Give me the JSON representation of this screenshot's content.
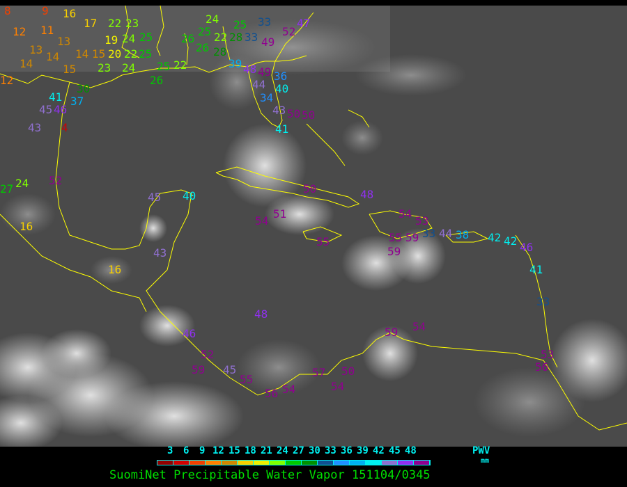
{
  "title": "SuomiNet Precipitable Water Vapor 151104/0345",
  "legend": {
    "ticks": [
      "3",
      "6",
      "9",
      "12",
      "15",
      "18",
      "21",
      "24",
      "27",
      "30",
      "33",
      "36",
      "39",
      "42",
      "45",
      "48"
    ],
    "unit_label": "PWV",
    "unit": "mm",
    "colors": [
      "#900000",
      "#d00000",
      "#f04000",
      "#ff8000",
      "#d08800",
      "#f8d000",
      "#f0f000",
      "#80ff00",
      "#00c800",
      "#009000",
      "#105090",
      "#2090ff",
      "#00b0f0",
      "#00f0f0",
      "#9070d0",
      "#9030f0",
      "#900090"
    ]
  },
  "coastline_color": "#ffff00",
  "stations": [
    8,
    9,
    16,
    17,
    12,
    11,
    13,
    14,
    14,
    15,
    13,
    14,
    15,
    12,
    22,
    23,
    19,
    24,
    25,
    20,
    22,
    25,
    23,
    24,
    25,
    26,
    26,
    25,
    24,
    22,
    22,
    26,
    28,
    28,
    25,
    33,
    33,
    52,
    47,
    49,
    39,
    48,
    49,
    44,
    36,
    34,
    40,
    43,
    50,
    50,
    41,
    30,
    41,
    37,
    46,
    45,
    43,
    4,
    52,
    27,
    24,
    16,
    45,
    40,
    43,
    16,
    54,
    51,
    50,
    48,
    55,
    55,
    54,
    53,
    59,
    59,
    33,
    44,
    38,
    42,
    46,
    41,
    33,
    42,
    48,
    46,
    52,
    59,
    45,
    55,
    56,
    54,
    57,
    50,
    54,
    59,
    54,
    53,
    56
  ]
}
